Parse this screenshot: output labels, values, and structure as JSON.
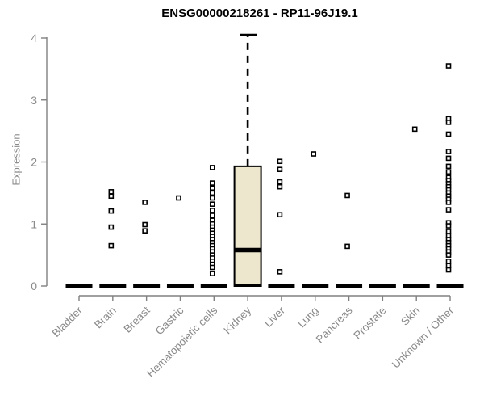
{
  "chart_data": {
    "type": "boxplot",
    "title": "ENSG00000218261 - RP11-96J19.1",
    "ylabel": "Expression",
    "xlabel": "",
    "ylim": [
      0,
      4
    ],
    "yticks": [
      0,
      1,
      2,
      3,
      4
    ],
    "grid": false,
    "legend": "none",
    "categories": [
      "Bladder",
      "Brain",
      "Breast",
      "Gastric",
      "Hematopoietic cells",
      "Kidney",
      "Liver",
      "Lung",
      "Pancreas",
      "Prostate",
      "Skin",
      "Unknown / Other"
    ],
    "boxes": [
      {
        "category": "Bladder",
        "q1": 0,
        "median": 0,
        "q3": 0,
        "whisker_low": 0,
        "whisker_high": 0
      },
      {
        "category": "Brain",
        "q1": 0,
        "median": 0,
        "q3": 0,
        "whisker_low": 0,
        "whisker_high": 0
      },
      {
        "category": "Breast",
        "q1": 0,
        "median": 0,
        "q3": 0,
        "whisker_low": 0,
        "whisker_high": 0
      },
      {
        "category": "Gastric",
        "q1": 0,
        "median": 0,
        "q3": 0,
        "whisker_low": 0,
        "whisker_high": 0
      },
      {
        "category": "Hematopoietic cells",
        "q1": 0,
        "median": 0,
        "q3": 0,
        "whisker_low": 0,
        "whisker_high": 0
      },
      {
        "category": "Kidney",
        "q1": 0,
        "median": 0.58,
        "q3": 1.93,
        "whisker_low": 0,
        "whisker_high": 4.05
      },
      {
        "category": "Liver",
        "q1": 0,
        "median": 0,
        "q3": 0,
        "whisker_low": 0,
        "whisker_high": 0
      },
      {
        "category": "Lung",
        "q1": 0,
        "median": 0,
        "q3": 0,
        "whisker_low": 0,
        "whisker_high": 0
      },
      {
        "category": "Pancreas",
        "q1": 0,
        "median": 0,
        "q3": 0,
        "whisker_low": 0,
        "whisker_high": 0
      },
      {
        "category": "Prostate",
        "q1": 0,
        "median": 0,
        "q3": 0,
        "whisker_low": 0,
        "whisker_high": 0
      },
      {
        "category": "Skin",
        "q1": 0,
        "median": 0,
        "q3": 0,
        "whisker_low": 0,
        "whisker_high": 0
      },
      {
        "category": "Unknown / Other",
        "q1": 0,
        "median": 0,
        "q3": 0,
        "whisker_low": 0,
        "whisker_high": 0
      }
    ],
    "outliers": [
      [],
      [
        1.52,
        1.45,
        1.21,
        0.95,
        0.65
      ],
      [
        1.35,
        0.99,
        0.89
      ],
      [
        1.42
      ],
      [
        1.91,
        1.66,
        1.58,
        1.5,
        1.42,
        1.32,
        1.22,
        1.14,
        1.06,
        1.0,
        0.95,
        0.9,
        0.85,
        0.8,
        0.75,
        0.7,
        0.65,
        0.6,
        0.55,
        0.5,
        0.45,
        0.4,
        0.35,
        0.3,
        0.2
      ],
      [],
      [
        2.01,
        1.88,
        1.68,
        1.6,
        1.15,
        0.23
      ],
      [
        2.13
      ],
      [
        1.46,
        0.64
      ],
      [],
      [
        2.53
      ],
      [
        3.55,
        2.7,
        2.64,
        2.45,
        2.17,
        2.06,
        1.93,
        1.84,
        1.75,
        1.7,
        1.65,
        1.6,
        1.55,
        1.5,
        1.45,
        1.4,
        1.35,
        1.23,
        1.02,
        0.97,
        0.88,
        0.81,
        0.75,
        0.7,
        0.65,
        0.6,
        0.55,
        0.5,
        0.4,
        0.33,
        0.26
      ]
    ],
    "colors": {
      "box_fill": "#EDE7CE",
      "box_stroke": "#000000",
      "median": "#000000",
      "point_stroke": "#000000",
      "point_fill": "#ffffff",
      "axis_line": "#808080",
      "axis_text": "#8a8a8a",
      "title_text": "#000000"
    }
  }
}
